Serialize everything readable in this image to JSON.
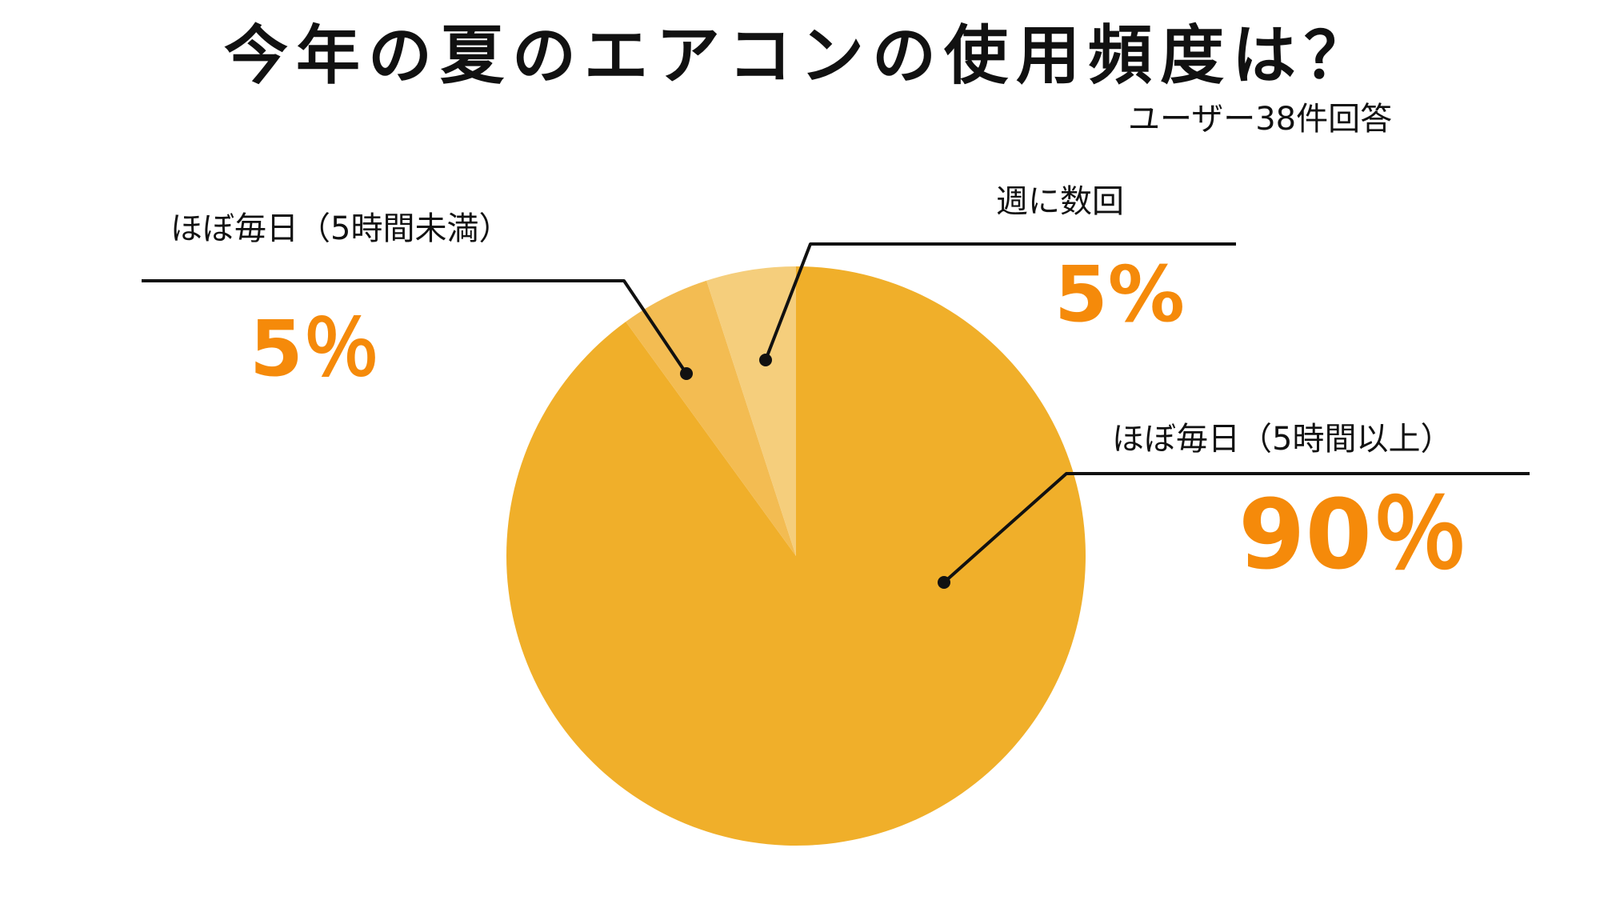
{
  "chart_data": {
    "type": "pie",
    "title": "今年の夏のエアコンの使用頻度は？",
    "subtitle": "ユーザー38件回答",
    "slices": [
      {
        "label": "ほぼ毎日（5時間以上）",
        "value": 90,
        "display": "90％",
        "color": "#F0AF2A"
      },
      {
        "label": "ほぼ毎日（5時間未満）",
        "value": 5,
        "display": "5％",
        "color": "#F3BC52"
      },
      {
        "label": "週に数回",
        "value": 5,
        "display": "5%",
        "color": "#F5CE7C"
      }
    ],
    "start_angle": "12 o'clock",
    "direction": "clockwise",
    "value_color": "#F58A0A",
    "leader_color": "#111111"
  }
}
